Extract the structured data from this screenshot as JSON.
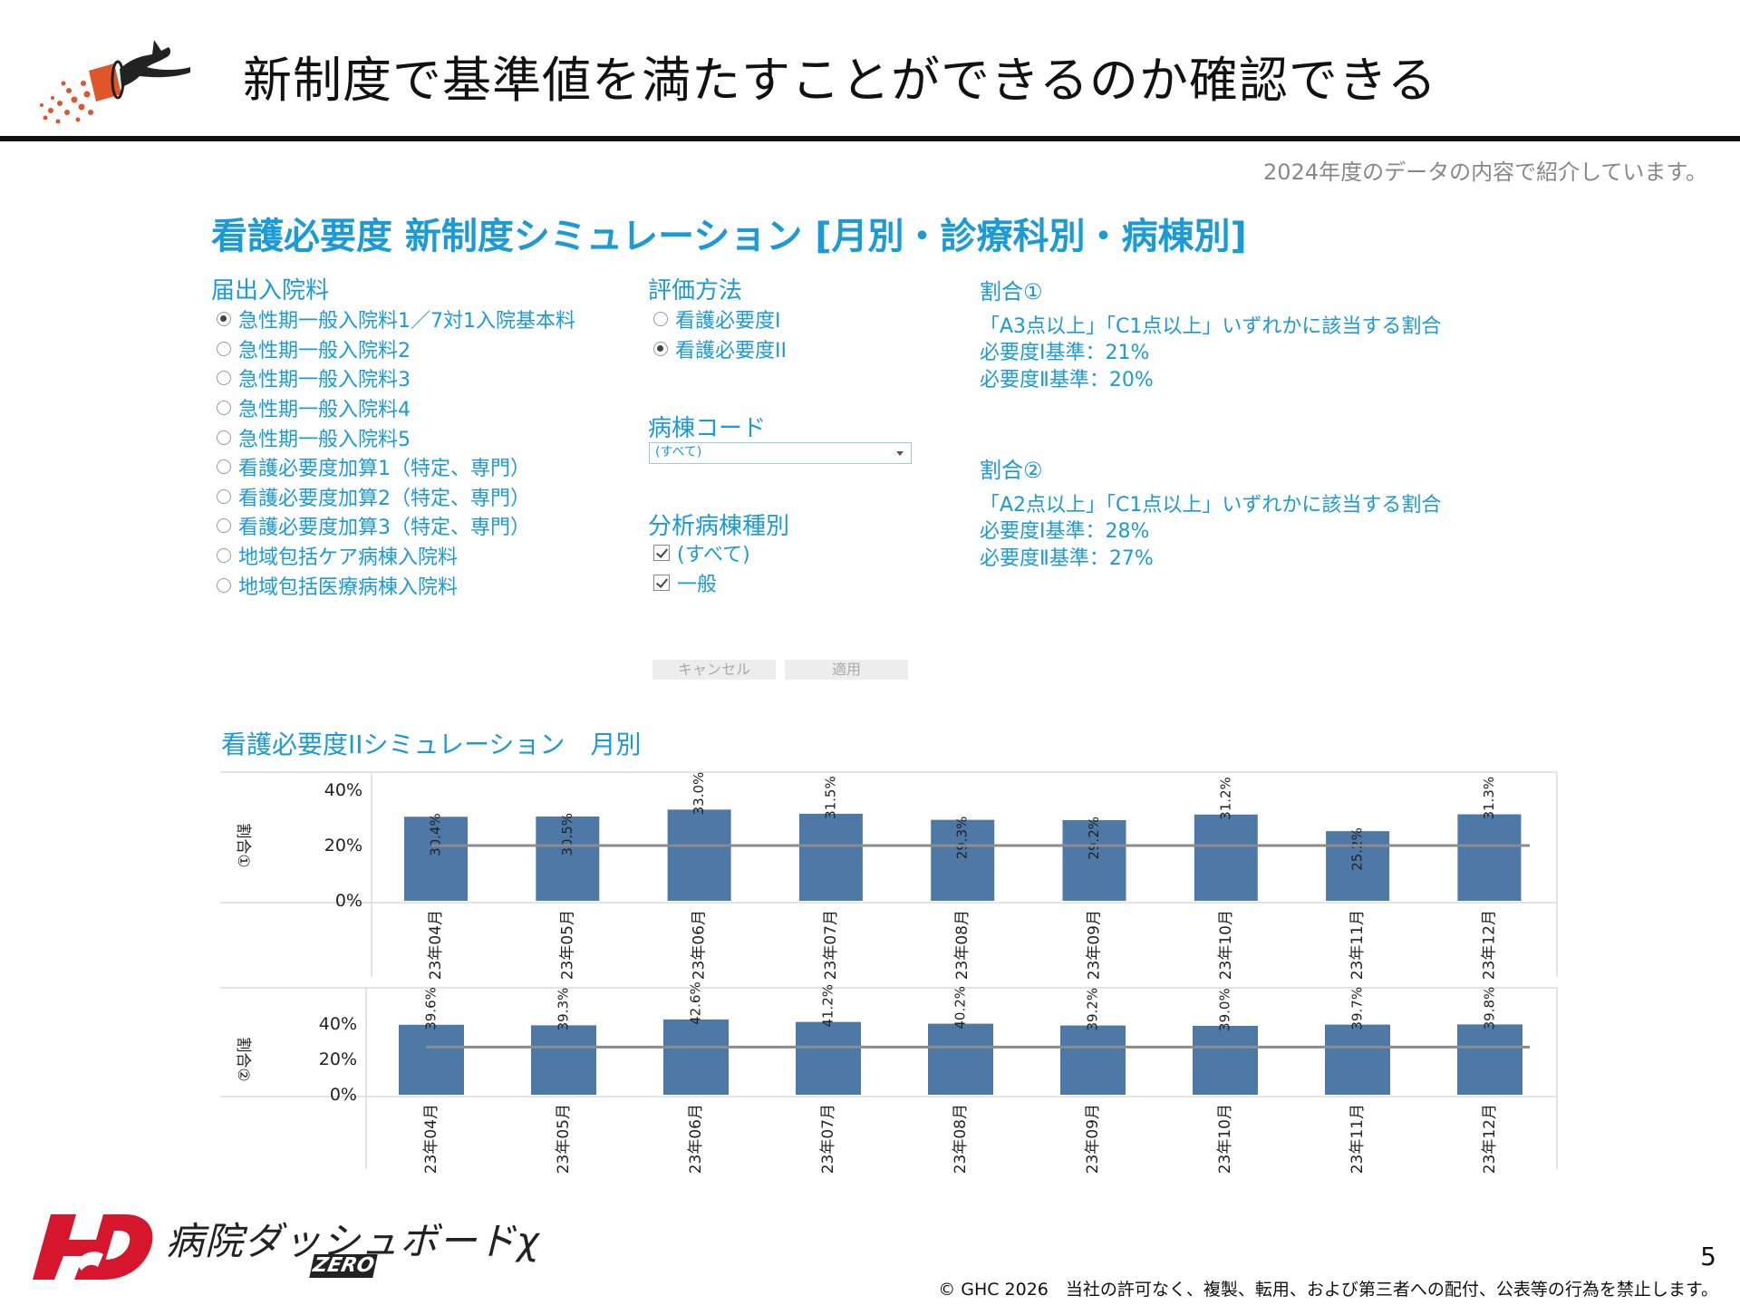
{
  "header": {
    "title": "新制度で基準値を満たすことができるのか確認できる",
    "note": "2024年度のデータの内容で紹介しています。"
  },
  "simulation": {
    "title": "看護必要度 新制度シミュレーション [月別・診療科別・病棟別]"
  },
  "filters": {
    "admission_fee": {
      "label": "届出入院料",
      "options": [
        {
          "label": "急性期一般入院料1／7対1入院基本料",
          "selected": true
        },
        {
          "label": "急性期一般入院料2",
          "selected": false
        },
        {
          "label": "急性期一般入院料3",
          "selected": false
        },
        {
          "label": "急性期一般入院料4",
          "selected": false
        },
        {
          "label": "急性期一般入院料5",
          "selected": false
        },
        {
          "label": "看護必要度加算1（特定、専門）",
          "selected": false
        },
        {
          "label": "看護必要度加算2（特定、専門）",
          "selected": false
        },
        {
          "label": "看護必要度加算3（特定、専門）",
          "selected": false
        },
        {
          "label": "地域包括ケア病棟入院料",
          "selected": false
        },
        {
          "label": "地域包括医療病棟入院料",
          "selected": false
        }
      ]
    },
    "evaluation_method": {
      "label": "評価方法",
      "options": [
        {
          "label": "看護必要度I",
          "selected": false
        },
        {
          "label": "看護必要度II",
          "selected": true
        }
      ]
    },
    "ward_code": {
      "label": "病棟コード",
      "value": "(すべて)"
    },
    "ward_type": {
      "label": "分析病棟種別",
      "options": [
        {
          "label": "(すべて)",
          "checked": true
        },
        {
          "label": "一般",
          "checked": true
        }
      ]
    },
    "cancel_label": "キャンセル",
    "apply_label": "適用"
  },
  "ratios": {
    "ratio1": {
      "head": "割合①",
      "desc": "「A3点以上」「C1点以上」いずれかに該当する割合",
      "std1": "必要度Ⅰ基準：21%",
      "std2": "必要度Ⅱ基準：20%"
    },
    "ratio2": {
      "head": "割合②",
      "desc": "「A2点以上」「C1点以上」いずれかに該当する割合",
      "std1": "必要度Ⅰ基準：28%",
      "std2": "必要度Ⅱ基準：27%"
    }
  },
  "chart_section": {
    "title": "看護必要度IIシミュレーション　月別"
  },
  "chart_data": [
    {
      "type": "bar",
      "ylabel": "割合①",
      "categories": [
        "23年04月",
        "23年05月",
        "23年06月",
        "23年07月",
        "23年08月",
        "23年09月",
        "23年10月",
        "23年11月",
        "23年12月"
      ],
      "values": [
        30.4,
        30.5,
        33.0,
        31.5,
        29.3,
        29.2,
        31.2,
        25.2,
        31.3
      ],
      "data_labels": [
        "30.4%",
        "30.5%",
        "33.0%",
        "31.5%",
        "29.3%",
        "29.2%",
        "31.2%",
        "25.2%",
        "31.3%"
      ],
      "yticks": [
        "0%",
        "20%",
        "40%"
      ],
      "reference_line": 20,
      "ylim": [
        0,
        40
      ],
      "color": "#4e79a7"
    },
    {
      "type": "bar",
      "ylabel": "割合②",
      "categories": [
        "23年04月",
        "23年05月",
        "23年06月",
        "23年07月",
        "23年08月",
        "23年09月",
        "23年10月",
        "23年11月",
        "23年12月"
      ],
      "values": [
        39.6,
        39.3,
        42.6,
        41.2,
        40.2,
        39.2,
        39.0,
        39.7,
        39.8
      ],
      "data_labels": [
        "39.6%",
        "39.3%",
        "42.6%",
        "41.2%",
        "40.2%",
        "39.2%",
        "39.0%",
        "39.7%",
        "39.8%"
      ],
      "yticks": [
        "0%",
        "20%",
        "40%"
      ],
      "reference_line": 27,
      "ylim": [
        0,
        40
      ],
      "color": "#4e79a7"
    }
  ],
  "footer": {
    "logo_text": "病院ダッシュボードχ",
    "logo_badge": "ZERO",
    "page_number": "5",
    "copyright": "© GHC 2026　当社の許可なく、複製、転用、および第三者への配付、公表等の行為を禁止します。"
  }
}
